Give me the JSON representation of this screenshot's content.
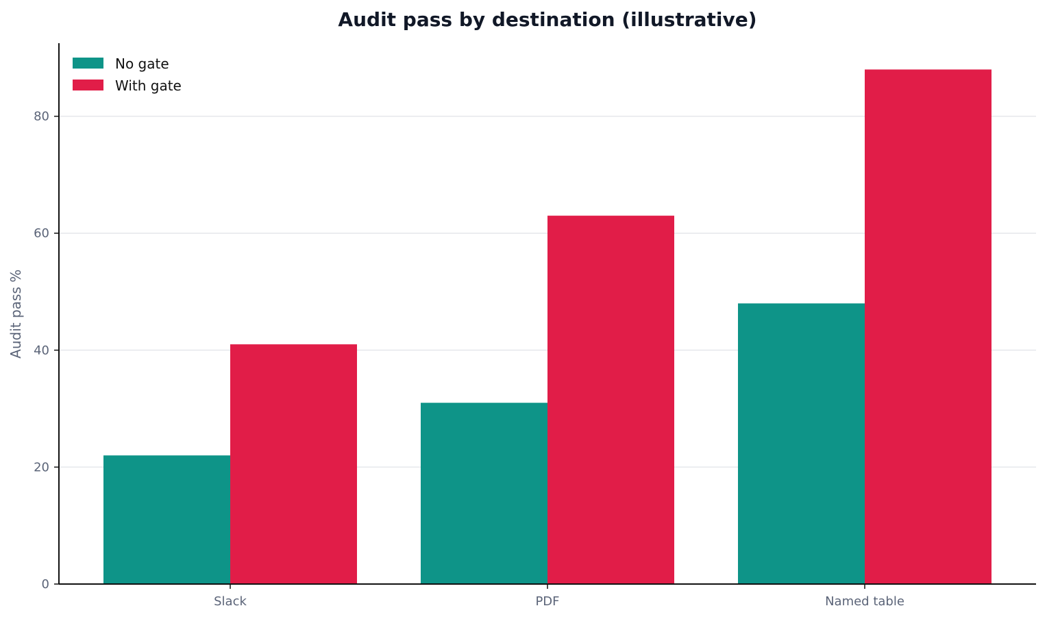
{
  "chart_data": {
    "type": "bar",
    "title": "Audit pass by destination (illustrative)",
    "xlabel": "",
    "ylabel": "Audit pass %",
    "categories": [
      "Slack",
      "PDF",
      "Named table"
    ],
    "series": [
      {
        "name": "No gate",
        "values": [
          22,
          31,
          48
        ],
        "color": "#0e9488"
      },
      {
        "name": "With gate",
        "values": [
          41,
          63,
          88
        ],
        "color": "#e11d48"
      }
    ],
    "ylim": [
      0,
      92.5
    ],
    "yticks": [
      0,
      20,
      40,
      60,
      80
    ],
    "grid": "horizontal",
    "legend_position": "top-left",
    "colors": {
      "axis": "#111111",
      "grid": "#e5e7eb",
      "tick_text": "#5b6478",
      "title": "#111827"
    }
  }
}
